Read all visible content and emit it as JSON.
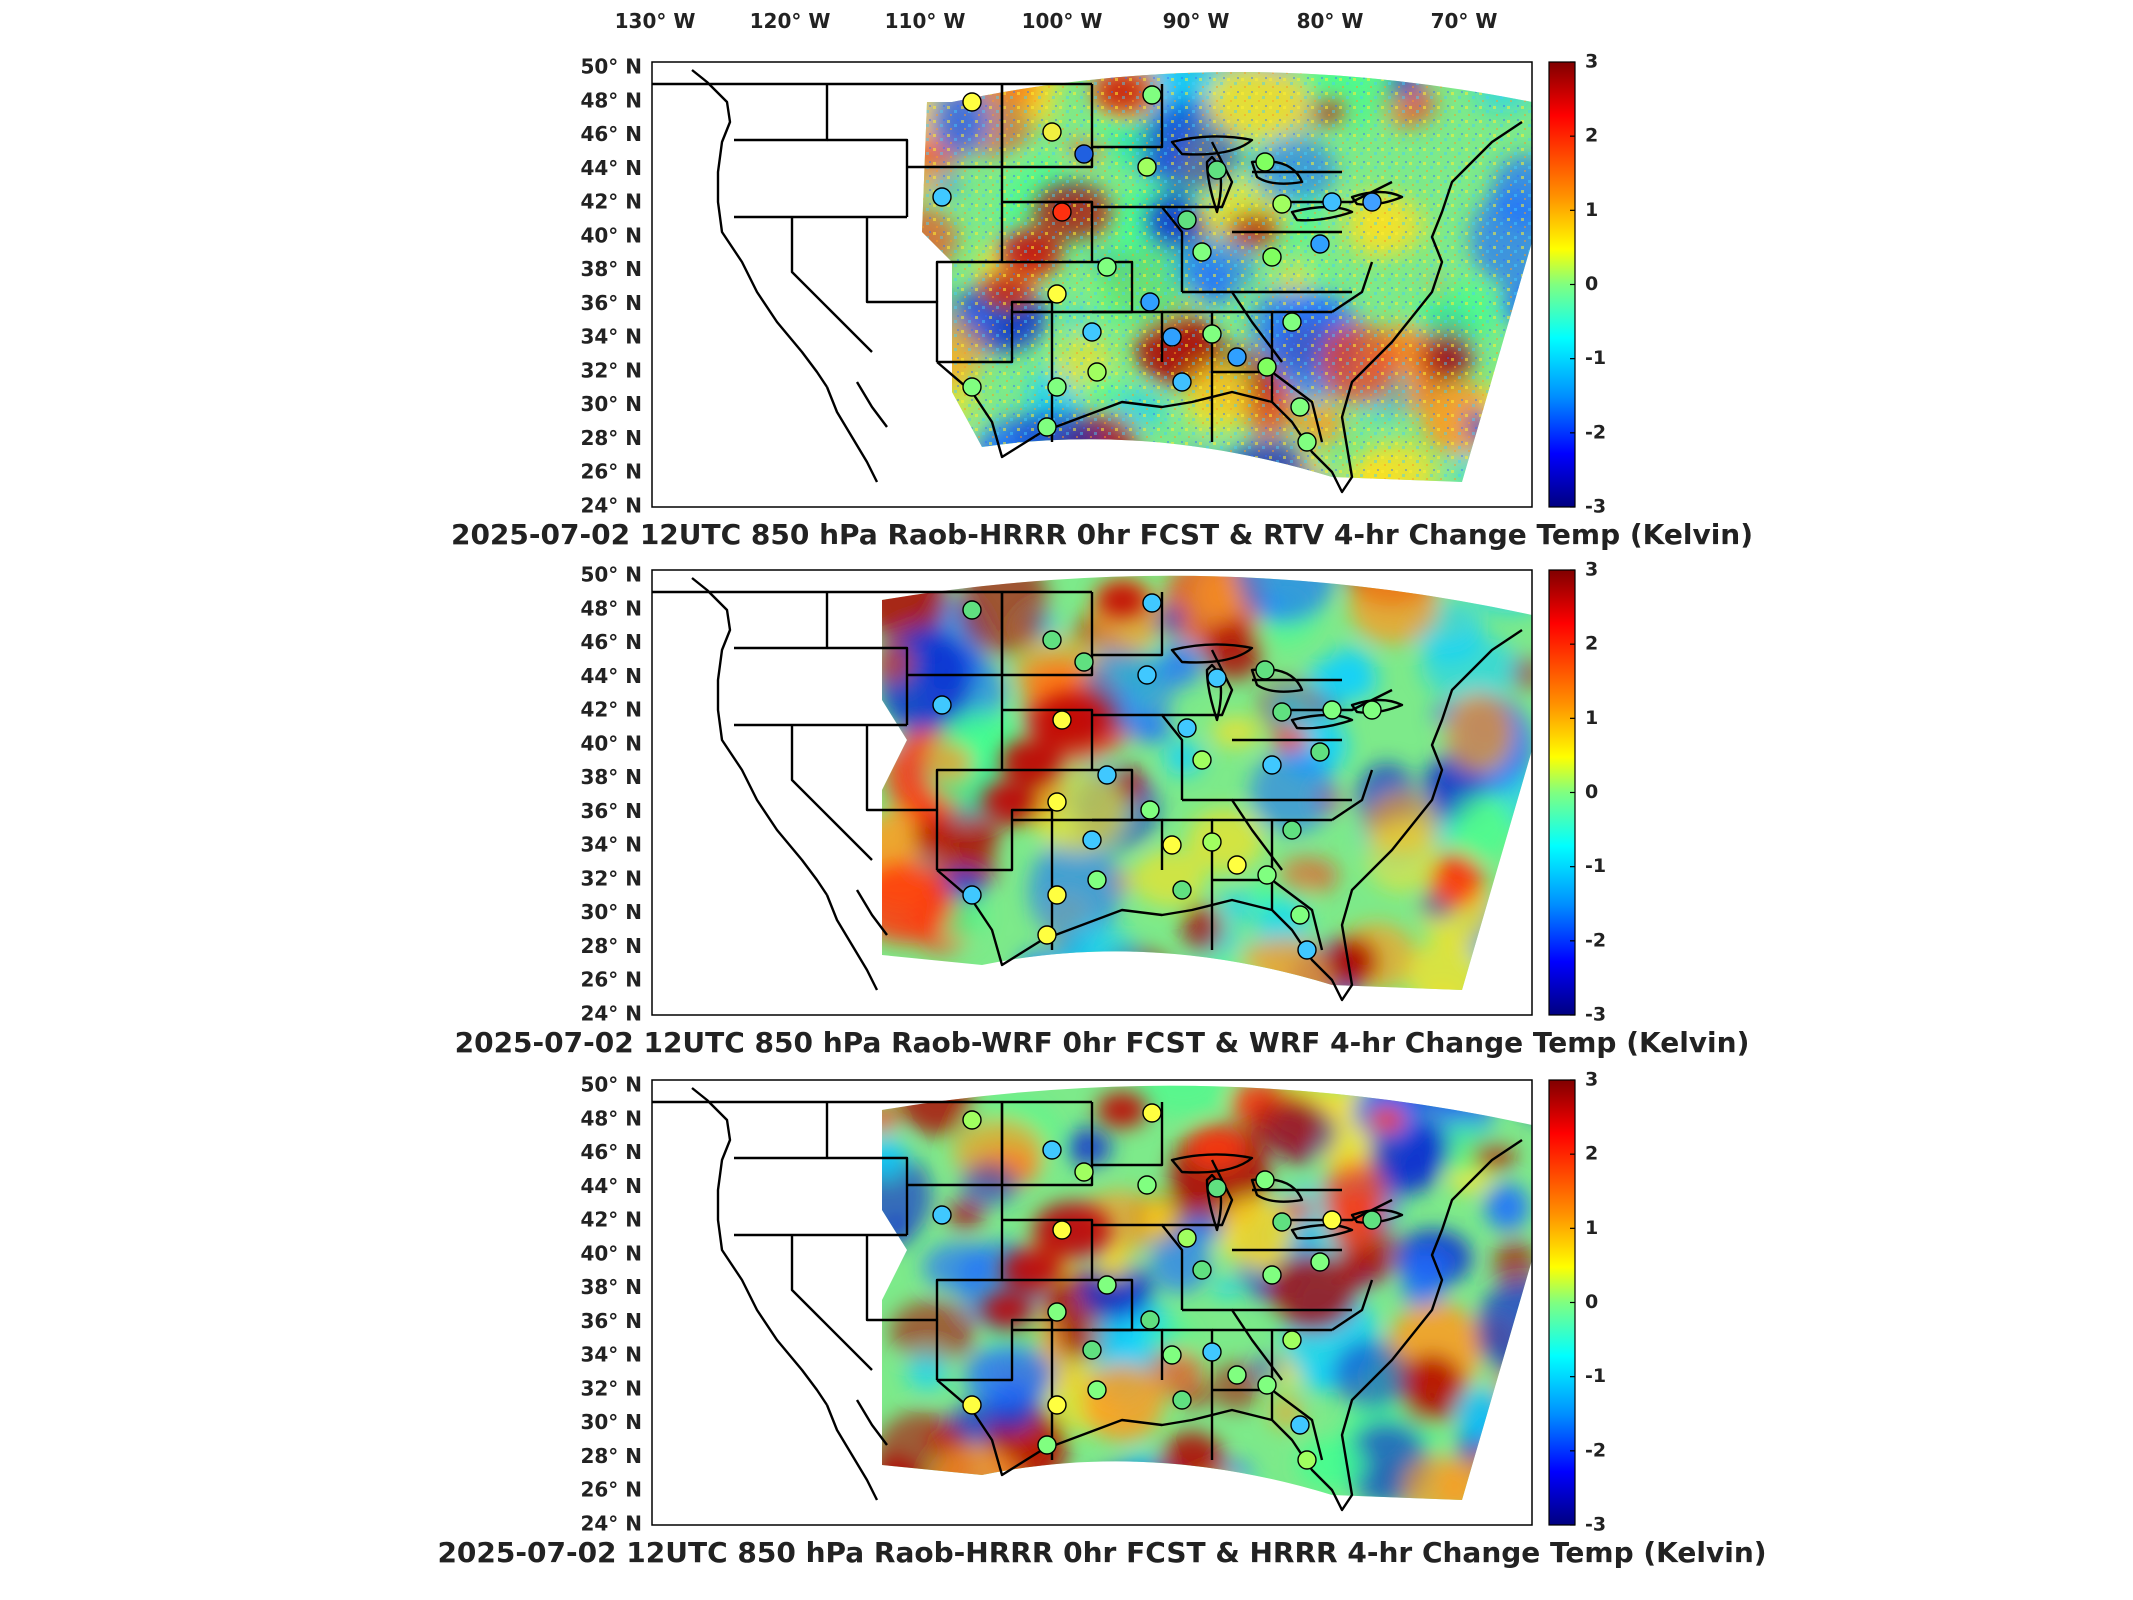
{
  "lon_labels": [
    "130° W",
    "120° W",
    "110° W",
    "100° W",
    "90° W",
    "80° W",
    "70° W"
  ],
  "lat_labels": [
    "50° N",
    "48° N",
    "46° N",
    "44° N",
    "42° N",
    "40° N",
    "38° N",
    "36° N",
    "34° N",
    "32° N",
    "30° N",
    "28° N",
    "26° N",
    "24° N"
  ],
  "colorbar": {
    "ticks": [
      "3",
      "2",
      "1",
      "0",
      "-1",
      "-2",
      "-3"
    ],
    "colors": [
      "#800000",
      "#ff0000",
      "#ff8000",
      "#ffff00",
      "#80ff80",
      "#00ffff",
      "#0080ff",
      "#0000ff",
      "#000080"
    ]
  },
  "panels": [
    {
      "title": "2025-07-02 12UTC 850 hPa Raob-HRRR 0hr FCST & RTV 4-hr Change Temp (Kelvin)"
    },
    {
      "title": "2025-07-02 12UTC 850 hPa Raob-WRF 0hr FCST & WRF 4-hr Change Temp (Kelvin)"
    },
    {
      "title": "2025-07-02 12UTC 850 hPa Raob-HRRR 0hr FCST & HRRR 4-hr Change Temp (Kelvin)"
    }
  ]
}
